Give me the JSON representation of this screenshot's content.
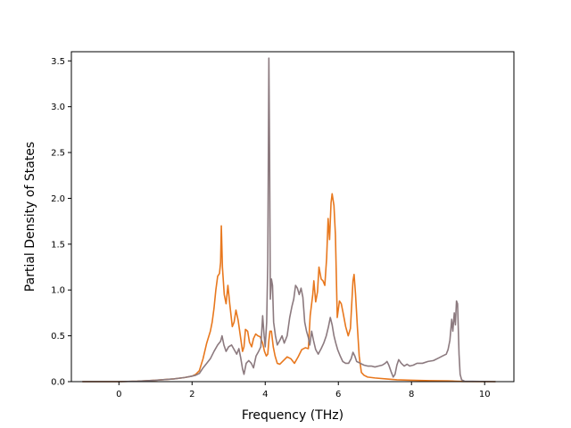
{
  "chart_data": {
    "type": "line",
    "title": "",
    "xlabel": "Frequency (THz)",
    "ylabel": "Partial Density of States",
    "xlim": [
      -1.3,
      10.8
    ],
    "ylim": [
      0,
      3.6
    ],
    "xticks": [
      0,
      2,
      4,
      6,
      8,
      10
    ],
    "yticks": [
      0.0,
      0.5,
      1.0,
      1.5,
      2.0,
      2.5,
      3.0,
      3.5
    ],
    "xtick_labels": [
      "0",
      "2",
      "4",
      "6",
      "8",
      "10"
    ],
    "ytick_labels": [
      "0.0",
      "0.5",
      "1.0",
      "1.5",
      "2.0",
      "2.5",
      "3.0",
      "3.5"
    ],
    "grid": false,
    "legend": "none",
    "series": [
      {
        "color": "#e8781e",
        "points": [
          [
            -1.0,
            0.0
          ],
          [
            0.0,
            0.0
          ],
          [
            0.5,
            0.005
          ],
          [
            1.0,
            0.015
          ],
          [
            1.5,
            0.03
          ],
          [
            1.8,
            0.045
          ],
          [
            2.0,
            0.06
          ],
          [
            2.1,
            0.08
          ],
          [
            2.2,
            0.12
          ],
          [
            2.3,
            0.25
          ],
          [
            2.4,
            0.42
          ],
          [
            2.5,
            0.55
          ],
          [
            2.55,
            0.65
          ],
          [
            2.6,
            0.8
          ],
          [
            2.65,
            1.0
          ],
          [
            2.7,
            1.15
          ],
          [
            2.75,
            1.18
          ],
          [
            2.78,
            1.3
          ],
          [
            2.8,
            1.7
          ],
          [
            2.83,
            1.25
          ],
          [
            2.88,
            0.95
          ],
          [
            2.93,
            0.85
          ],
          [
            2.98,
            1.05
          ],
          [
            3.03,
            0.85
          ],
          [
            3.1,
            0.6
          ],
          [
            3.15,
            0.65
          ],
          [
            3.2,
            0.78
          ],
          [
            3.26,
            0.67
          ],
          [
            3.32,
            0.5
          ],
          [
            3.38,
            0.33
          ],
          [
            3.42,
            0.38
          ],
          [
            3.46,
            0.57
          ],
          [
            3.52,
            0.55
          ],
          [
            3.57,
            0.43
          ],
          [
            3.63,
            0.38
          ],
          [
            3.68,
            0.47
          ],
          [
            3.74,
            0.52
          ],
          [
            3.8,
            0.5
          ],
          [
            3.86,
            0.49
          ],
          [
            3.93,
            0.42
          ],
          [
            3.98,
            0.33
          ],
          [
            4.03,
            0.28
          ],
          [
            4.07,
            0.3
          ],
          [
            4.1,
            0.45
          ],
          [
            4.13,
            0.55
          ],
          [
            4.17,
            0.55
          ],
          [
            4.22,
            0.38
          ],
          [
            4.27,
            0.28
          ],
          [
            4.33,
            0.2
          ],
          [
            4.4,
            0.19
          ],
          [
            4.5,
            0.23
          ],
          [
            4.6,
            0.27
          ],
          [
            4.7,
            0.25
          ],
          [
            4.8,
            0.2
          ],
          [
            4.9,
            0.27
          ],
          [
            5.0,
            0.35
          ],
          [
            5.1,
            0.37
          ],
          [
            5.18,
            0.36
          ],
          [
            5.23,
            0.72
          ],
          [
            5.3,
            0.95
          ],
          [
            5.33,
            1.1
          ],
          [
            5.38,
            0.87
          ],
          [
            5.43,
            0.98
          ],
          [
            5.47,
            1.25
          ],
          [
            5.53,
            1.12
          ],
          [
            5.58,
            1.1
          ],
          [
            5.63,
            1.05
          ],
          [
            5.68,
            1.35
          ],
          [
            5.72,
            1.78
          ],
          [
            5.76,
            1.55
          ],
          [
            5.8,
            1.95
          ],
          [
            5.83,
            2.05
          ],
          [
            5.88,
            1.92
          ],
          [
            5.92,
            1.6
          ],
          [
            5.97,
            0.7
          ],
          [
            6.03,
            0.88
          ],
          [
            6.08,
            0.85
          ],
          [
            6.13,
            0.75
          ],
          [
            6.2,
            0.6
          ],
          [
            6.27,
            0.5
          ],
          [
            6.33,
            0.58
          ],
          [
            6.4,
            1.1
          ],
          [
            6.43,
            1.17
          ],
          [
            6.47,
            0.95
          ],
          [
            6.52,
            0.6
          ],
          [
            6.57,
            0.28
          ],
          [
            6.63,
            0.1
          ],
          [
            6.7,
            0.07
          ],
          [
            6.8,
            0.05
          ],
          [
            7.0,
            0.04
          ],
          [
            7.3,
            0.03
          ],
          [
            7.6,
            0.02
          ],
          [
            8.0,
            0.015
          ],
          [
            8.5,
            0.01
          ],
          [
            9.0,
            0.008
          ],
          [
            9.2,
            0.005
          ],
          [
            9.4,
            0.002
          ],
          [
            10.3,
            0.0
          ]
        ]
      },
      {
        "color": "#8c7a7f",
        "points": [
          [
            -1.0,
            0.0
          ],
          [
            0.0,
            0.0
          ],
          [
            0.5,
            0.005
          ],
          [
            1.0,
            0.015
          ],
          [
            1.5,
            0.03
          ],
          [
            1.8,
            0.045
          ],
          [
            2.0,
            0.06
          ],
          [
            2.1,
            0.07
          ],
          [
            2.2,
            0.09
          ],
          [
            2.3,
            0.15
          ],
          [
            2.4,
            0.2
          ],
          [
            2.5,
            0.25
          ],
          [
            2.6,
            0.33
          ],
          [
            2.7,
            0.4
          ],
          [
            2.78,
            0.44
          ],
          [
            2.82,
            0.5
          ],
          [
            2.87,
            0.4
          ],
          [
            2.93,
            0.33
          ],
          [
            3.0,
            0.38
          ],
          [
            3.08,
            0.4
          ],
          [
            3.15,
            0.35
          ],
          [
            3.22,
            0.3
          ],
          [
            3.28,
            0.36
          ],
          [
            3.33,
            0.26
          ],
          [
            3.38,
            0.14
          ],
          [
            3.42,
            0.08
          ],
          [
            3.48,
            0.2
          ],
          [
            3.55,
            0.23
          ],
          [
            3.62,
            0.2
          ],
          [
            3.68,
            0.15
          ],
          [
            3.75,
            0.28
          ],
          [
            3.82,
            0.33
          ],
          [
            3.88,
            0.38
          ],
          [
            3.93,
            0.72
          ],
          [
            3.97,
            0.5
          ],
          [
            4.0,
            0.38
          ],
          [
            4.04,
            0.65
          ],
          [
            4.07,
            1.3
          ],
          [
            4.1,
            3.53
          ],
          [
            4.12,
            2.5
          ],
          [
            4.14,
            0.9
          ],
          [
            4.17,
            1.12
          ],
          [
            4.2,
            1.05
          ],
          [
            4.23,
            0.65
          ],
          [
            4.28,
            0.5
          ],
          [
            4.33,
            0.4
          ],
          [
            4.4,
            0.45
          ],
          [
            4.46,
            0.5
          ],
          [
            4.52,
            0.42
          ],
          [
            4.6,
            0.5
          ],
          [
            4.67,
            0.7
          ],
          [
            4.73,
            0.82
          ],
          [
            4.78,
            0.9
          ],
          [
            4.83,
            1.05
          ],
          [
            4.88,
            1.02
          ],
          [
            4.93,
            0.95
          ],
          [
            4.98,
            1.02
          ],
          [
            5.03,
            0.92
          ],
          [
            5.08,
            0.65
          ],
          [
            5.13,
            0.55
          ],
          [
            5.18,
            0.48
          ],
          [
            5.22,
            0.4
          ],
          [
            5.27,
            0.55
          ],
          [
            5.32,
            0.45
          ],
          [
            5.38,
            0.35
          ],
          [
            5.45,
            0.3
          ],
          [
            5.53,
            0.36
          ],
          [
            5.6,
            0.42
          ],
          [
            5.67,
            0.5
          ],
          [
            5.73,
            0.6
          ],
          [
            5.78,
            0.7
          ],
          [
            5.83,
            0.62
          ],
          [
            5.88,
            0.5
          ],
          [
            5.93,
            0.42
          ],
          [
            5.98,
            0.35
          ],
          [
            6.05,
            0.28
          ],
          [
            6.12,
            0.22
          ],
          [
            6.2,
            0.2
          ],
          [
            6.28,
            0.2
          ],
          [
            6.35,
            0.25
          ],
          [
            6.4,
            0.32
          ],
          [
            6.45,
            0.28
          ],
          [
            6.5,
            0.22
          ],
          [
            6.6,
            0.2
          ],
          [
            6.7,
            0.18
          ],
          [
            6.8,
            0.17
          ],
          [
            6.9,
            0.17
          ],
          [
            7.0,
            0.16
          ],
          [
            7.1,
            0.17
          ],
          [
            7.2,
            0.18
          ],
          [
            7.28,
            0.2
          ],
          [
            7.33,
            0.22
          ],
          [
            7.38,
            0.18
          ],
          [
            7.45,
            0.1
          ],
          [
            7.5,
            0.05
          ],
          [
            7.55,
            0.08
          ],
          [
            7.6,
            0.18
          ],
          [
            7.65,
            0.24
          ],
          [
            7.72,
            0.2
          ],
          [
            7.8,
            0.17
          ],
          [
            7.88,
            0.19
          ],
          [
            7.95,
            0.17
          ],
          [
            8.05,
            0.18
          ],
          [
            8.15,
            0.2
          ],
          [
            8.3,
            0.2
          ],
          [
            8.45,
            0.22
          ],
          [
            8.6,
            0.23
          ],
          [
            8.75,
            0.26
          ],
          [
            8.85,
            0.28
          ],
          [
            8.95,
            0.3
          ],
          [
            9.0,
            0.35
          ],
          [
            9.05,
            0.45
          ],
          [
            9.1,
            0.68
          ],
          [
            9.13,
            0.55
          ],
          [
            9.17,
            0.75
          ],
          [
            9.2,
            0.62
          ],
          [
            9.23,
            0.88
          ],
          [
            9.26,
            0.85
          ],
          [
            9.3,
            0.3
          ],
          [
            9.33,
            0.08
          ],
          [
            9.37,
            0.02
          ],
          [
            9.45,
            0.005
          ],
          [
            10.3,
            0.0
          ]
        ]
      }
    ]
  }
}
